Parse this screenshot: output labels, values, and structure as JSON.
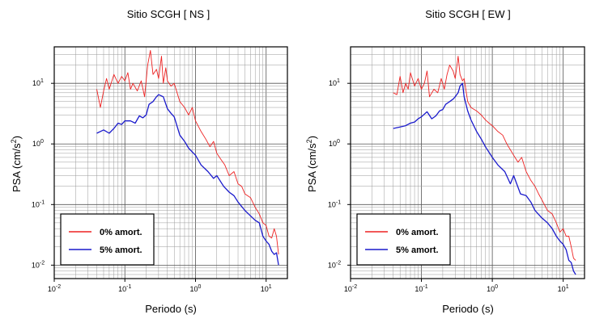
{
  "chart_data": [
    {
      "type": "line",
      "title": "Sitio SCGH [ NS ]",
      "xlabel": "Periodo (s)",
      "ylabel": "PSA (cm/s2)",
      "x_scale": "log",
      "y_scale": "log",
      "xlim": [
        0.01,
        20
      ],
      "ylim": [
        0.006,
        40
      ],
      "grid": true,
      "legend_position": "bottom-left",
      "series": [
        {
          "name": "0% amort.",
          "color": "#ee2222",
          "x": [
            0.04,
            0.045,
            0.05,
            0.055,
            0.06,
            0.07,
            0.08,
            0.09,
            0.1,
            0.11,
            0.12,
            0.13,
            0.15,
            0.17,
            0.19,
            0.21,
            0.23,
            0.25,
            0.28,
            0.3,
            0.33,
            0.35,
            0.38,
            0.4,
            0.45,
            0.5,
            0.6,
            0.7,
            0.8,
            0.9,
            1.0,
            1.2,
            1.4,
            1.6,
            1.8,
            2.0,
            2.3,
            2.6,
            3.0,
            3.5,
            4.0,
            4.5,
            5.0,
            6.0,
            7.0,
            8.0,
            9.0,
            10.0,
            11.0,
            12.0,
            13.0,
            14.0,
            15.0
          ],
          "y": [
            8.0,
            4.0,
            7.5,
            12.0,
            8.0,
            14.0,
            10.0,
            13.0,
            11.0,
            15.0,
            8.0,
            10.0,
            7.5,
            11.0,
            6.0,
            20.0,
            35.0,
            14.0,
            17.0,
            12.0,
            28.0,
            10.0,
            18.0,
            11.0,
            9.0,
            10.0,
            5.0,
            4.0,
            3.0,
            4.0,
            2.4,
            1.6,
            1.2,
            0.9,
            1.1,
            0.7,
            0.55,
            0.45,
            0.3,
            0.35,
            0.22,
            0.2,
            0.15,
            0.13,
            0.09,
            0.07,
            0.05,
            0.045,
            0.03,
            0.028,
            0.04,
            0.03,
            0.015
          ]
        },
        {
          "name": "5% amort.",
          "color": "#1a1acc",
          "x": [
            0.04,
            0.05,
            0.06,
            0.07,
            0.08,
            0.09,
            0.1,
            0.12,
            0.14,
            0.16,
            0.18,
            0.2,
            0.22,
            0.25,
            0.28,
            0.3,
            0.35,
            0.4,
            0.45,
            0.5,
            0.6,
            0.7,
            0.8,
            1.0,
            1.2,
            1.5,
            1.8,
            2.0,
            2.5,
            3.0,
            3.5,
            4.0,
            5.0,
            6.0,
            7.0,
            8.0,
            9.0,
            10.0,
            11.0,
            12.0,
            13.0,
            14.0,
            15.0
          ],
          "y": [
            1.5,
            1.7,
            1.5,
            1.8,
            2.2,
            2.1,
            2.4,
            2.4,
            2.2,
            2.9,
            2.7,
            3.0,
            4.5,
            5.0,
            6.0,
            6.5,
            6.0,
            3.8,
            3.2,
            2.8,
            1.4,
            1.1,
            0.85,
            0.65,
            0.45,
            0.35,
            0.27,
            0.3,
            0.2,
            0.16,
            0.14,
            0.11,
            0.08,
            0.065,
            0.055,
            0.05,
            0.03,
            0.025,
            0.022,
            0.017,
            0.015,
            0.016,
            0.01
          ]
        }
      ]
    },
    {
      "type": "line",
      "title": "Sitio SCGH [ EW ]",
      "xlabel": "Periodo (s)",
      "ylabel": "PSA (cm/s2)",
      "x_scale": "log",
      "y_scale": "log",
      "xlim": [
        0.01,
        20
      ],
      "ylim": [
        0.006,
        40
      ],
      "grid": true,
      "legend_position": "bottom-left",
      "series": [
        {
          "name": "0% amort.",
          "color": "#ee2222",
          "x": [
            0.04,
            0.045,
            0.05,
            0.055,
            0.06,
            0.065,
            0.07,
            0.08,
            0.09,
            0.1,
            0.11,
            0.12,
            0.13,
            0.15,
            0.17,
            0.19,
            0.21,
            0.23,
            0.25,
            0.28,
            0.3,
            0.33,
            0.35,
            0.38,
            0.4,
            0.45,
            0.5,
            0.6,
            0.7,
            0.8,
            0.9,
            1.0,
            1.2,
            1.4,
            1.6,
            1.8,
            2.0,
            2.3,
            2.6,
            3.0,
            3.5,
            4.0,
            4.5,
            5.0,
            6.0,
            7.0,
            8.0,
            9.0,
            10.0,
            11.0,
            12.0,
            13.0,
            14.0,
            15.0
          ],
          "y": [
            7.0,
            6.5,
            13.0,
            7.0,
            10.0,
            8.0,
            15.0,
            9.0,
            12.0,
            8.0,
            10.0,
            16.0,
            6.0,
            8.0,
            7.0,
            12.0,
            8.0,
            14.0,
            20.0,
            16.0,
            12.0,
            28.0,
            14.0,
            11.0,
            12.0,
            5.0,
            4.0,
            3.5,
            3.0,
            2.5,
            2.2,
            2.0,
            1.6,
            1.4,
            1.0,
            0.8,
            0.65,
            0.5,
            0.6,
            0.35,
            0.25,
            0.2,
            0.15,
            0.12,
            0.08,
            0.07,
            0.05,
            0.035,
            0.04,
            0.03,
            0.03,
            0.02,
            0.013,
            0.012
          ]
        },
        {
          "name": "5% amort.",
          "color": "#1a1acc",
          "x": [
            0.04,
            0.05,
            0.06,
            0.07,
            0.08,
            0.09,
            0.1,
            0.12,
            0.14,
            0.16,
            0.18,
            0.2,
            0.22,
            0.25,
            0.28,
            0.3,
            0.33,
            0.35,
            0.38,
            0.4,
            0.45,
            0.5,
            0.6,
            0.7,
            0.8,
            1.0,
            1.2,
            1.5,
            1.8,
            2.0,
            2.5,
            3.0,
            3.5,
            4.0,
            5.0,
            6.0,
            7.0,
            8.0,
            9.0,
            10.0,
            11.0,
            12.0,
            13.0,
            14.0,
            15.0
          ],
          "y": [
            1.8,
            1.9,
            2.0,
            2.2,
            2.3,
            2.6,
            2.8,
            3.4,
            2.6,
            2.9,
            3.5,
            3.7,
            4.5,
            5.0,
            5.5,
            6.0,
            7.0,
            9.0,
            10.0,
            6.0,
            3.5,
            2.5,
            1.6,
            1.2,
            0.9,
            0.6,
            0.45,
            0.35,
            0.22,
            0.3,
            0.15,
            0.14,
            0.11,
            0.08,
            0.06,
            0.05,
            0.04,
            0.03,
            0.025,
            0.022,
            0.018,
            0.012,
            0.011,
            0.008,
            0.007
          ]
        }
      ]
    }
  ]
}
